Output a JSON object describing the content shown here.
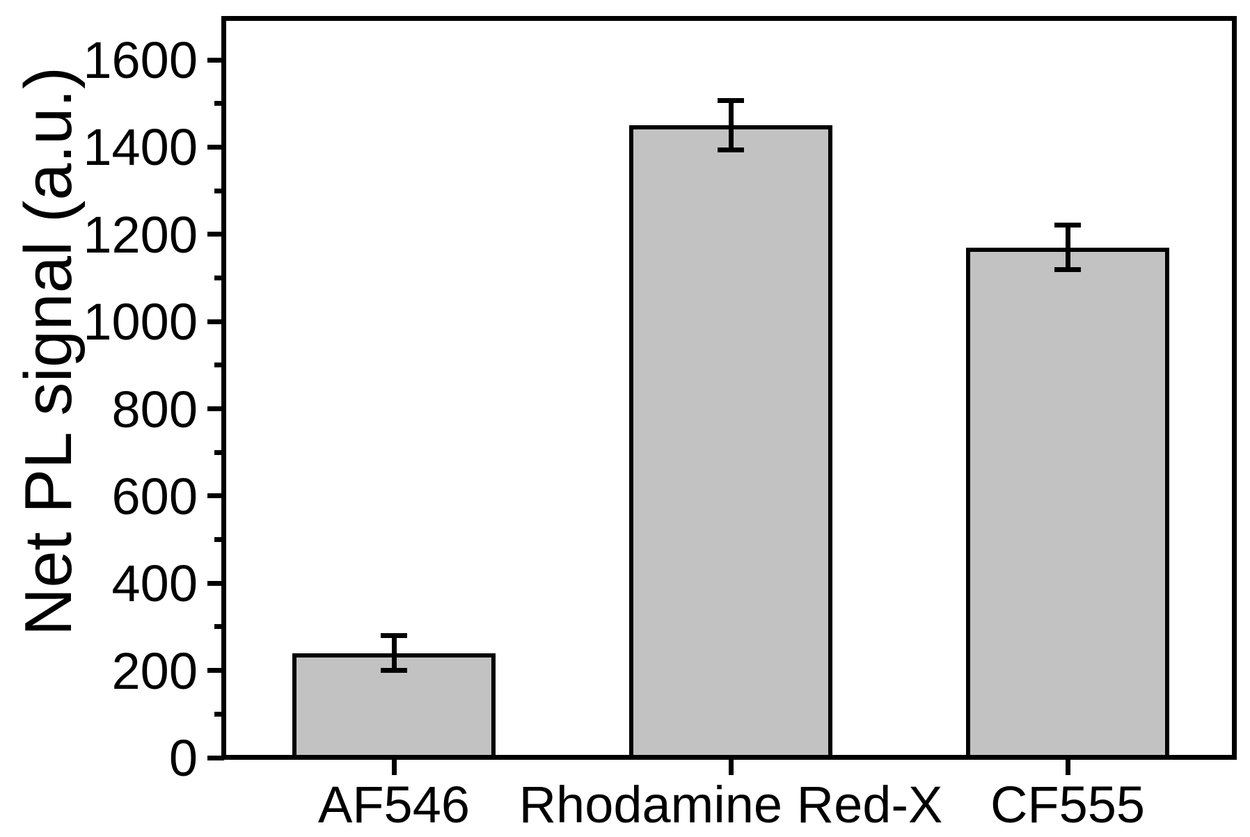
{
  "chart_data": {
    "type": "bar",
    "title": "",
    "categories": [
      "AF546",
      "Rhodamine Red-X",
      "CF555"
    ],
    "values": [
      240,
      1450,
      1170
    ],
    "errors": [
      37,
      54,
      48
    ],
    "xlabel": "",
    "ylabel": "Net PL signal (a.u.)",
    "ylim": [
      0,
      1694
    ],
    "yticks_major": [
      0,
      200,
      400,
      600,
      800,
      1000,
      1200,
      1400,
      1600
    ],
    "yticks_minor": [
      100,
      300,
      500,
      700,
      900,
      1100,
      1300,
      1500
    ],
    "grid": false,
    "frame": "full-box",
    "bar_fill": "#c2c2c2",
    "bar_edge": "#000000",
    "error_color": "#000000",
    "axis_color": "#000000",
    "background": "#ffffff"
  }
}
